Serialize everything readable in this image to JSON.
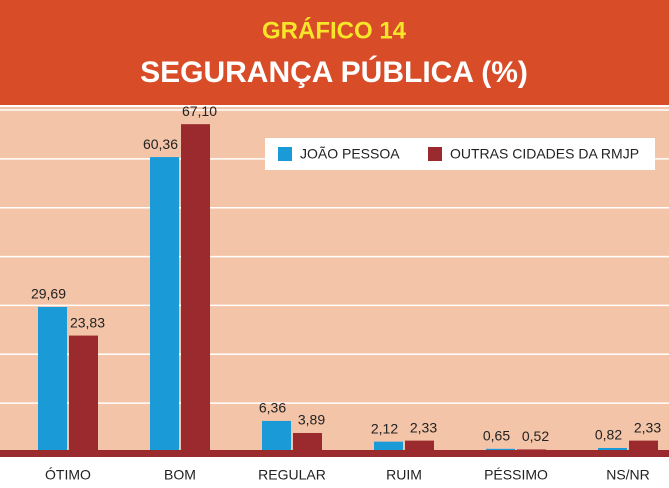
{
  "chart_data": {
    "type": "bar",
    "title": "GRÁFICO 14",
    "subtitle": "SEGURANÇA PÚBLICA (%)",
    "categories": [
      "ÓTIMO",
      "BOM",
      "REGULAR",
      "RUIM",
      "PÉSSIMO",
      "NS/NR"
    ],
    "series": [
      {
        "name": "JOÃO PESSOA",
        "color": "#1a9ad6",
        "values": [
          29.69,
          60.36,
          6.36,
          2.12,
          0.65,
          0.82
        ],
        "value_labels": [
          "29,69",
          "60,36",
          "6,36",
          "2,12",
          "0,65",
          "0,82"
        ]
      },
      {
        "name": "OUTRAS CIDADES DA RMJP",
        "color": "#9b2a2e",
        "values": [
          23.83,
          67.1,
          3.89,
          2.33,
          0.52,
          2.33
        ],
        "value_labels": [
          "23,83",
          "67,10",
          "3,89",
          "2,33",
          "0,52",
          "2,33"
        ]
      }
    ],
    "ylim": [
      0,
      70
    ],
    "yticks": [
      10,
      20,
      30,
      40,
      50,
      60,
      70
    ],
    "grid": true
  }
}
